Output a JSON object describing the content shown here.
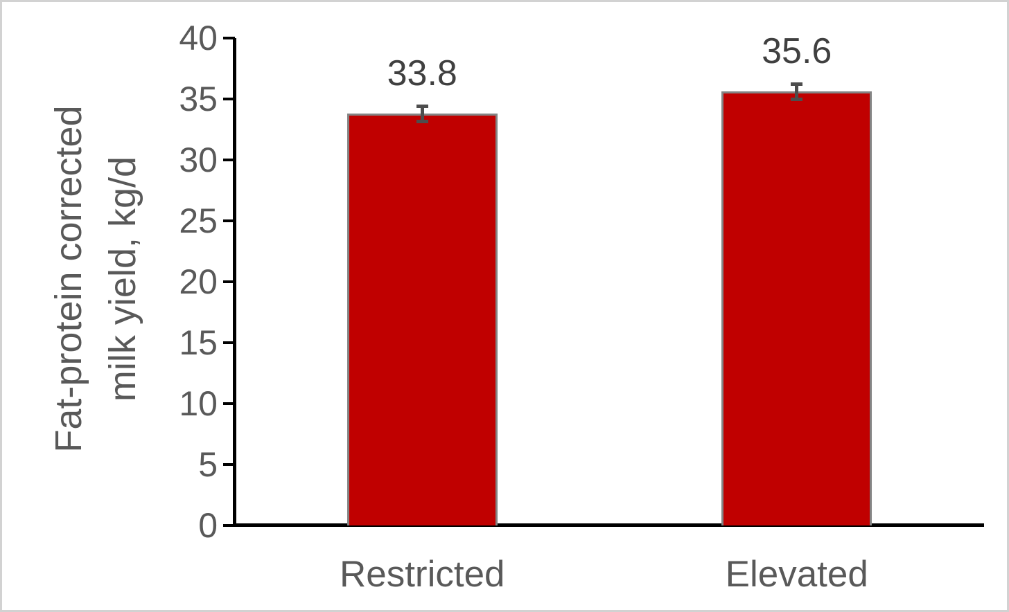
{
  "chart_data": {
    "type": "bar",
    "categories": [
      "Restricted",
      "Elevated"
    ],
    "values": [
      33.8,
      35.6
    ],
    "data_labels": [
      "33.8",
      "35.6"
    ],
    "error_bars": [
      0.65,
      0.65
    ],
    "title": "",
    "xlabel": "",
    "ylabel_line1": "Fat-protein corrected",
    "ylabel_line2": "milk yield, kg/d",
    "ylim": [
      0,
      40
    ],
    "yticks": [
      0,
      5,
      10,
      15,
      20,
      25,
      30,
      35,
      40
    ],
    "grid": false,
    "legend_position": "none",
    "bar_color": "#c00000",
    "bar_border_color": "#848484",
    "error_bar_color": "#4d4d4d",
    "axis_color": "#000000",
    "text_color": "#595959"
  }
}
